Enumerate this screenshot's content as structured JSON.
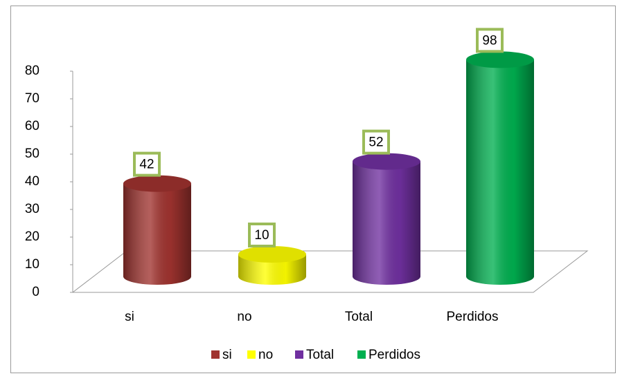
{
  "chart_data": {
    "type": "bar3d-cylinder",
    "categories": [
      "si",
      "no",
      "Total",
      "Perdidos"
    ],
    "values": [
      42,
      10,
      52,
      98
    ],
    "colors": [
      "#a0332f",
      "#ffff00",
      "#7030a0",
      "#00b050"
    ],
    "ylim": [
      0,
      80
    ],
    "yticks": [
      0,
      10,
      20,
      30,
      40,
      50,
      60,
      70,
      80
    ],
    "legend": "bottom"
  }
}
